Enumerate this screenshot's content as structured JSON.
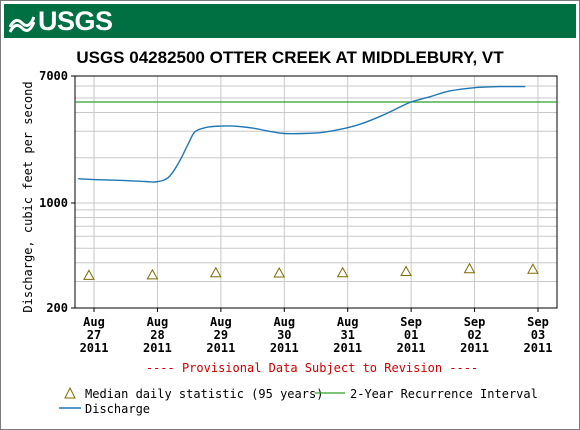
{
  "header": {
    "logo_text": "USGS",
    "banner_color": "#006f41"
  },
  "chart_data": {
    "type": "line",
    "title": "USGS 04282500 OTTER CREEK AT MIDDLEBURY, VT",
    "ylabel": "Discharge, cubic feet per second",
    "xlabel": "",
    "y_scale": "log",
    "ylim": [
      200,
      7000
    ],
    "y_ticks": [
      {
        "value": 200,
        "label": "200"
      },
      {
        "value": 1000,
        "label": "1000"
      },
      {
        "value": 7000,
        "label": "7000"
      }
    ],
    "x_ticks": [
      {
        "day": 0,
        "lines": [
          "Aug",
          "27",
          "2011"
        ]
      },
      {
        "day": 1,
        "lines": [
          "Aug",
          "28",
          "2011"
        ]
      },
      {
        "day": 2,
        "lines": [
          "Aug",
          "29",
          "2011"
        ]
      },
      {
        "day": 3,
        "lines": [
          "Aug",
          "30",
          "2011"
        ]
      },
      {
        "day": 4,
        "lines": [
          "Aug",
          "31",
          "2011"
        ]
      },
      {
        "day": 5,
        "lines": [
          "Sep",
          "01",
          "2011"
        ]
      },
      {
        "day": 6,
        "lines": [
          "Sep",
          "02",
          "2011"
        ]
      },
      {
        "day": 7,
        "lines": [
          "Sep",
          "03",
          "2011"
        ]
      }
    ],
    "xlim_days": [
      -0.3,
      7.3
    ],
    "grid": true,
    "provisional_note": "---- Provisional Data Subject to Revision ----",
    "colors": {
      "discharge": "#1f77b4",
      "recurrence": "#2ca02c",
      "median": "#7f6a00",
      "provisional": "#cc0000",
      "grid": "#c8c8c8"
    },
    "series": [
      {
        "name": "Discharge",
        "x_days": [
          -0.25,
          0.0,
          0.5,
          0.8,
          0.95,
          1.1,
          1.2,
          1.35,
          1.5,
          1.6,
          1.8,
          2.0,
          2.2,
          2.5,
          2.8,
          3.0,
          3.3,
          3.6,
          3.9,
          4.2,
          4.5,
          4.8,
          5.0,
          5.3,
          5.6,
          6.0,
          6.4,
          6.8
        ],
        "values": [
          1450,
          1430,
          1410,
          1390,
          1380,
          1420,
          1520,
          1900,
          2550,
          3000,
          3200,
          3250,
          3250,
          3150,
          2980,
          2900,
          2900,
          2950,
          3100,
          3350,
          3750,
          4300,
          4700,
          5100,
          5550,
          5850,
          5950,
          5950
        ]
      },
      {
        "name": "Median daily statistic (95 years)",
        "x_days": [
          -0.08,
          0.92,
          1.92,
          2.92,
          3.92,
          4.92,
          5.92,
          6.92
        ],
        "values": [
          330,
          332,
          343,
          342,
          343,
          350,
          365,
          362
        ]
      },
      {
        "name": "2-Year Recurrence Interval",
        "value": 4700
      }
    ],
    "legend": [
      {
        "label": "Median daily statistic (95 years)",
        "kind": "triangle"
      },
      {
        "label": "2-Year Recurrence Interval",
        "kind": "line-green"
      },
      {
        "label": "Discharge",
        "kind": "line-blue"
      }
    ]
  }
}
